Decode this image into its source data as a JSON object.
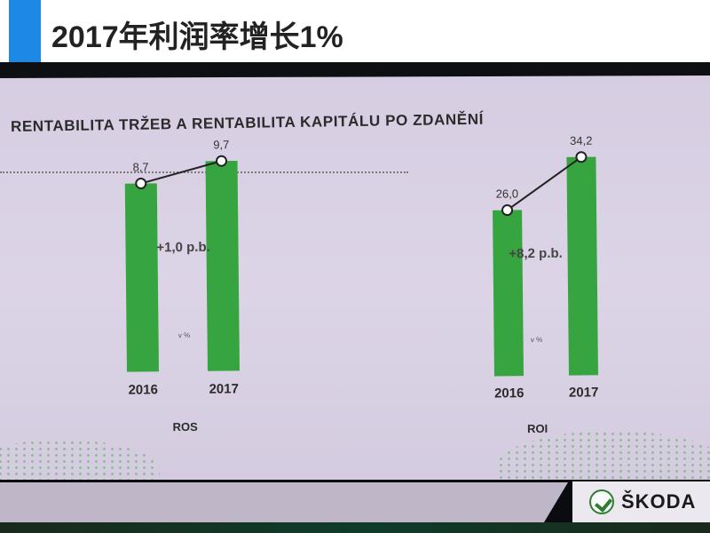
{
  "header": {
    "title": "2017年利润率增长1%"
  },
  "slide": {
    "title": "RENTABILITA TRŽEB A RENTABILITA KAPITÁLU PO ZDANĚNÍ"
  },
  "brand": {
    "logo_text": "ŠKODA"
  },
  "colors": {
    "bar": "#37a53f",
    "accent": "#1e88e5",
    "line": "#222222"
  },
  "chart_data": [
    {
      "type": "bar",
      "title": "ROS",
      "delta_label": "+1,0 p.b.",
      "unit_label": "v %",
      "categories": [
        "2016",
        "2017"
      ],
      "values": [
        8.7,
        9.7
      ],
      "value_labels": [
        "8,7",
        "9,7"
      ],
      "ylim": [
        0,
        11
      ]
    },
    {
      "type": "bar",
      "title": "ROI",
      "delta_label": "+8,2 p.b.",
      "unit_label": "v %",
      "categories": [
        "2016",
        "2017"
      ],
      "values": [
        26.0,
        34.2
      ],
      "value_labels": [
        "26,0",
        "34,2"
      ],
      "ylim": [
        0,
        38
      ]
    }
  ]
}
